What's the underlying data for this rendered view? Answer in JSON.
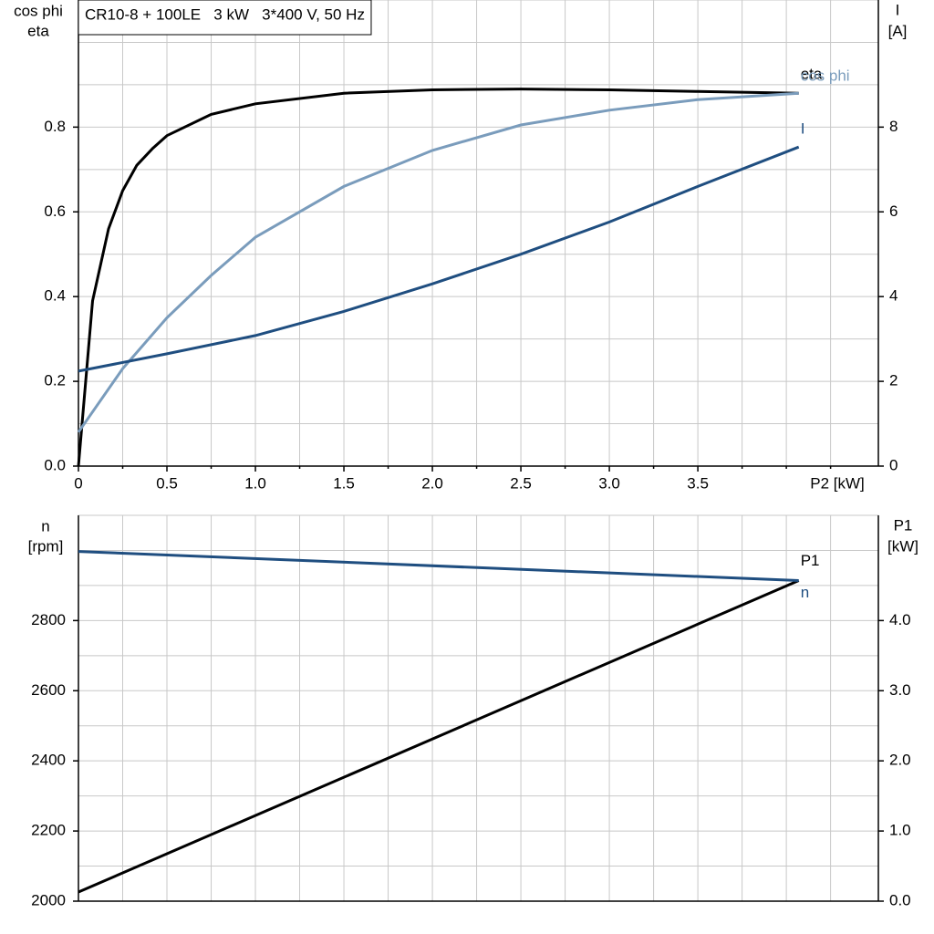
{
  "chart_data": [
    {
      "type": "line",
      "title": "CR10-8 + 100LE   3 kW   3*400 V, 50 Hz",
      "y_label": [
        "cos phi",
        "eta"
      ],
      "y2_label": [
        "I",
        "[A]"
      ],
      "x_label": "P2 [kW]",
      "xlim": [
        0,
        4.52
      ],
      "xticks": [
        {
          "value": 0,
          "label": "0"
        },
        0.5,
        {
          "value": 1,
          "label": "1.0"
        },
        1.5,
        {
          "value": 2,
          "label": "2.0"
        },
        2.5,
        {
          "value": 3,
          "label": "3.0"
        },
        3.5
      ],
      "minor_xticks": [
        0.25,
        0.75,
        1.25,
        1.75,
        2.25,
        2.75,
        3.25,
        3.75,
        4,
        4.25
      ],
      "ylim": [
        0,
        1.1
      ],
      "yticks": [
        {
          "value": 0,
          "label": "0.0"
        },
        0.2,
        0.4,
        0.6,
        0.8
      ],
      "minor_yticks": [
        0.1,
        0.3,
        0.5,
        0.7,
        0.9,
        1.0
      ],
      "y2lim": [
        0,
        11
      ],
      "y2ticks": [
        0,
        2,
        4,
        6,
        8
      ],
      "grid": true,
      "series": [
        {
          "name": "eta",
          "color": "#000000",
          "x": [
            0,
            0.08,
            0.17,
            0.25,
            0.33,
            0.42,
            0.5,
            0.75,
            1.0,
            1.5,
            2.0,
            2.5,
            3.0,
            3.5,
            4.07
          ],
          "values": [
            0,
            0.39,
            0.56,
            0.65,
            0.71,
            0.75,
            0.78,
            0.83,
            0.855,
            0.88,
            0.888,
            0.89,
            0.888,
            0.884,
            0.88
          ]
        },
        {
          "name": "cos phi",
          "color": "#7a9cbc",
          "x": [
            0,
            0.25,
            0.5,
            0.75,
            1.0,
            1.5,
            2.0,
            2.5,
            3.0,
            3.5,
            4.07
          ],
          "values": [
            0.08,
            0.23,
            0.35,
            0.45,
            0.54,
            0.66,
            0.745,
            0.805,
            0.84,
            0.865,
            0.88
          ]
        },
        {
          "name": "I",
          "color": "#1f4e80",
          "axis": "y2",
          "x": [
            0,
            0.5,
            1.0,
            1.5,
            2.0,
            2.5,
            3.0,
            3.5,
            4.07
          ],
          "values": [
            2.24,
            2.65,
            3.08,
            3.65,
            4.3,
            5.0,
            5.76,
            6.6,
            7.53
          ]
        }
      ]
    },
    {
      "type": "line",
      "y_label": [
        "n",
        "[rpm]"
      ],
      "y2_label": [
        "P1",
        "[kW]"
      ],
      "xlim": [
        0,
        4.52
      ],
      "minor_xticks": [
        0.25,
        0.5,
        0.75,
        1,
        1.25,
        1.5,
        1.75,
        2,
        2.25,
        2.5,
        2.75,
        3,
        3.25,
        3.5,
        3.75,
        4,
        4.25
      ],
      "ylim": [
        2000,
        3100
      ],
      "yticks": [
        2000,
        2200,
        2400,
        2600,
        2800
      ],
      "minor_yticks": [
        2100,
        2300,
        2500,
        2700,
        2900,
        3000
      ],
      "y2lim": [
        0,
        5.5
      ],
      "y2ticks": [
        {
          "value": 0,
          "label": "0.0"
        },
        {
          "value": 1,
          "label": "1.0"
        },
        {
          "value": 2,
          "label": "2.0"
        },
        {
          "value": 3,
          "label": "3.0"
        },
        {
          "value": 4,
          "label": "4.0"
        }
      ],
      "grid": true,
      "series": [
        {
          "name": "P1",
          "color": "#000000",
          "axis": "y2",
          "x": [
            0,
            4.07
          ],
          "values": [
            0.13,
            4.57
          ]
        },
        {
          "name": "n",
          "color": "#1f4e80",
          "x": [
            0,
            4.07
          ],
          "values": [
            2997,
            2914
          ]
        }
      ]
    }
  ]
}
